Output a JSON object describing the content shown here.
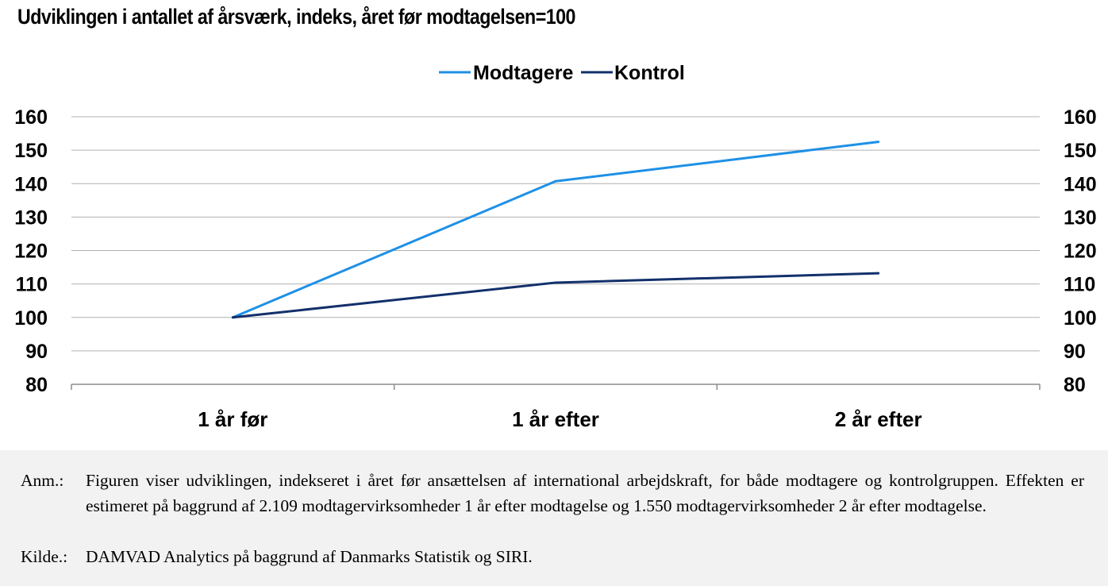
{
  "chart_data": {
    "type": "line",
    "title": "Udviklingen i antallet af årsværk, indeks, året før modtagelsen=100",
    "categories": [
      "1 år før",
      "1 år efter",
      "2 år efter"
    ],
    "series": [
      {
        "name": "Modtagere",
        "values": [
          100,
          140.7,
          152.5
        ],
        "color": "#1e90e6"
      },
      {
        "name": "Kontrol",
        "values": [
          100,
          110.4,
          113.2
        ],
        "color": "#13306b"
      }
    ],
    "ylim": [
      80,
      160
    ],
    "yticks": [
      "80",
      "90",
      "100",
      "110",
      "120",
      "130",
      "140",
      "150",
      "160"
    ],
    "secondary_axis": true,
    "grid": true,
    "legend": "top-center"
  },
  "notes": {
    "anm_label": "Anm.:",
    "anm_text": "Figuren viser udviklingen, indekseret i året før ansættelsen af international arbejdskraft, for både modtagere og kontrolgruppen. Effekten er estimeret på baggrund af 2.109 modtagervirksomheder 1 år efter modtagelse og 1.550 modtagervirksomheder 2 år efter modtagelse.",
    "kilde_label": "Kilde.:",
    "kilde_text": "DAMVAD Analytics på baggrund af Danmarks Statistik og SIRI."
  }
}
